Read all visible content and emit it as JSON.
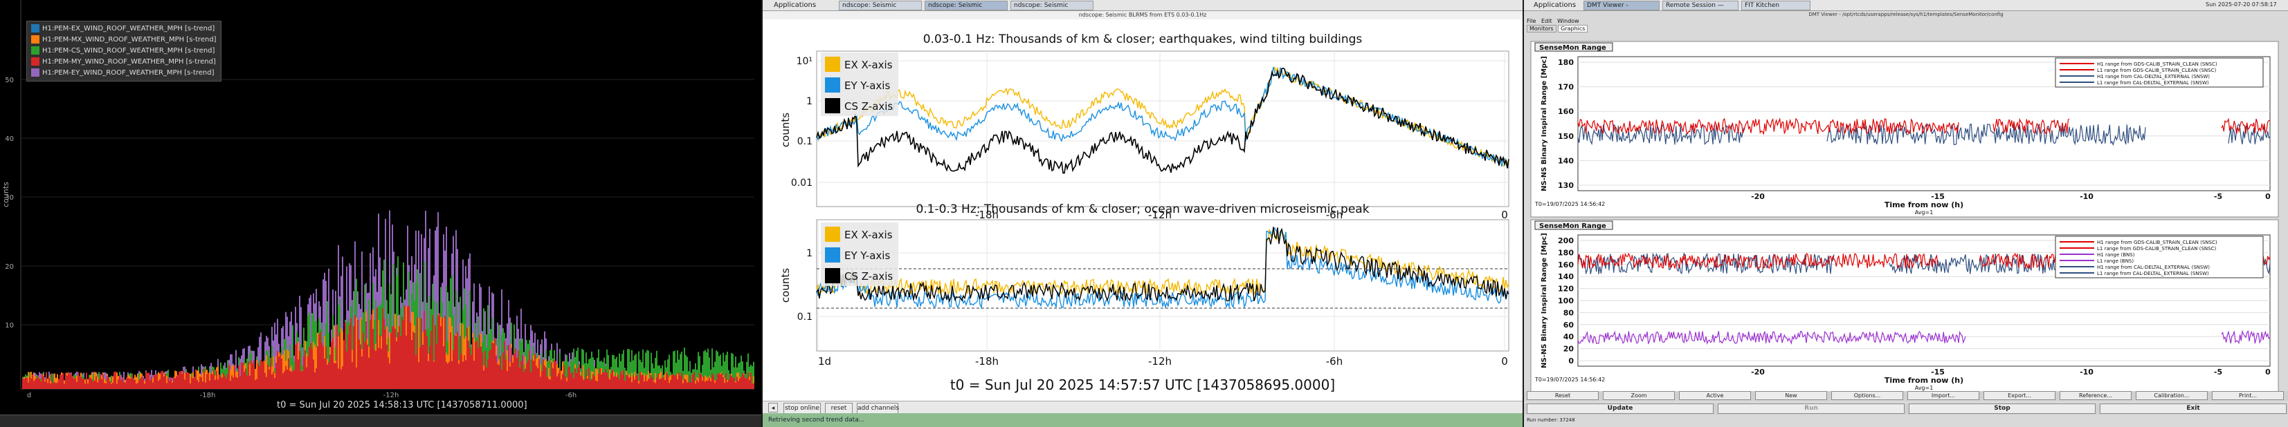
{
  "wind": {
    "legend": [
      "H1:PEM-EX_WIND_ROOF_WEATHER_MPH [s-trend]",
      "H1:PEM-MX_WIND_ROOF_WEATHER_MPH [s-trend]",
      "H1:PEM-CS_WIND_ROOF_WEATHER_MPH [s-trend]",
      "H1:PEM-MY_WIND_ROOF_WEATHER_MPH [s-trend]",
      "H1:PEM-EY_WIND_ROOF_WEATHER_MPH [s-trend]"
    ],
    "colors": [
      "#1f77b4",
      "#ff7f0e",
      "#2ca02c",
      "#d62728",
      "#9467bd"
    ],
    "ylabel": "counts",
    "yticks": [
      "50",
      "40",
      "30",
      "20",
      "10"
    ],
    "xticks": [
      "d",
      "-18h",
      "-12h",
      "-6h"
    ],
    "time": "t0 = Sun Jul 20 2025 14:58:13 UTC [1437058711.0000]"
  },
  "seismic": {
    "topbar": {
      "apps": "Applications",
      "tabs": [
        "ndscope: Seismic BLRMS f...",
        "ndscope: Seismic BLRMS f...",
        "ndscope: Seismic BLRMS f..."
      ],
      "title": "ndscope: Seismic BLRMS from ETS 0.03-0.1Hz"
    },
    "top": {
      "title": "0.03-0.1 Hz: Thousands of km & closer; earthquakes, wind tilting buildings",
      "ylabel": "counts",
      "yticks": [
        "10¹",
        "1",
        "0.1",
        "0.01"
      ],
      "xticks": [
        "-18h",
        "-12h",
        "-6h",
        "0"
      ],
      "legend": [
        "EX X-axis",
        "EY Y-axis",
        "CS Z-axis"
      ]
    },
    "bottom": {
      "title": "0.1-0.3 Hz: Thousands of km & closer; ocean wave-driven microseismic peak",
      "ylabel": "counts",
      "yticks": [
        "1",
        "0.1"
      ],
      "xticks": [
        "1d",
        "-18h",
        "-12h",
        "-6h",
        "0"
      ],
      "legend": [
        "EX X-axis",
        "EY Y-axis",
        "CS Z-axis"
      ]
    },
    "legend_colors": [
      "#f5b800",
      "#1a8fe0",
      "#000000"
    ],
    "time": "t0 = Sun Jul 20 2025 14:57:57 UTC [1437058695.0000]",
    "buttons": [
      "stop online",
      "reset",
      "add channels"
    ],
    "status": "Retrieving second trend data..."
  },
  "sensemon": {
    "topbar": {
      "apps": "Applications",
      "tabs": [
        "DMT Viewer - /opt/rtcds/...",
        "Remote Session — Mozilla ...",
        "FIT Kitchen (Chrome)"
      ],
      "clock": "Sun 2025-07-20 07:58:17"
    },
    "title": "DMT Viewer - /opt/rtcds/userapps/release/sys/h1/templates/SenseMonitor/config",
    "menus": [
      "File",
      "Edit",
      "Window"
    ],
    "subtabs": [
      "Monitors",
      "Graphics"
    ],
    "chart1": {
      "label": "SenseMon Range",
      "ylabel": "NS-NS Binary Inspiral Range [Mpc]",
      "yticks": [
        "180",
        "170",
        "160",
        "150",
        "140",
        "130"
      ],
      "xticks": [
        "-20",
        "-15",
        "-10",
        "-5",
        "0"
      ],
      "xlabel": "Time from now (h)",
      "avg": "Avg=1",
      "t0": "T0=19/07/2025 14:56:42",
      "legend": [
        "H1 range from GDS-CALIB_STRAIN_CLEAN (SNSC)",
        "L1 range from GDS-CALIB_STRAIN_CLEAN (SNSC)",
        "H1 range from CAL-DELTAL_EXTERNAL (SNSW)",
        "L1 range from CAL-DELTAL_EXTERNAL (SNSW)"
      ],
      "legend_colors": [
        "#e00000",
        "#e00000",
        "#2f4f7f",
        "#2f4f7f"
      ]
    },
    "chart2": {
      "label": "SenseMon Range",
      "ylabel": "NS-NS Binary Inspiral Range [Mpc]",
      "yticks": [
        "200",
        "180",
        "160",
        "140",
        "120",
        "100",
        "80",
        "60",
        "40",
        "20",
        "0"
      ],
      "xticks": [
        "-20",
        "-15",
        "-10",
        "-5",
        "0"
      ],
      "xlabel": "Time from now (h)",
      "avg": "Avg=1",
      "t0": "T0=19/07/2025 14:56:42",
      "legend": [
        "H1 range from GDS-CALIB_STRAIN_CLEAN (SNSC)",
        "L1 range from GDS-CALIB_STRAIN_CLEAN (SNSC)",
        "H1 range (BNS)",
        "L1 range (BNS)",
        "H1 range from CAL-DELTAL_EXTERNAL (SNSW)",
        "L1 range from CAL-DELTAL_EXTERNAL (SNSW)"
      ],
      "legend_colors": [
        "#e00000",
        "#e00000",
        "#9b30d0",
        "#9b30d0",
        "#2f4f7f",
        "#2f4f7f"
      ]
    },
    "buttons_row1": [
      "Reset",
      "Zoom",
      "Active",
      "New",
      "Options...",
      "Import...",
      "Export...",
      "Reference...",
      "Calibration...",
      "Print..."
    ],
    "buttons_row2": [
      "Update",
      "Run",
      "Stop",
      "Exit"
    ],
    "status": "Run number: 37248"
  }
}
